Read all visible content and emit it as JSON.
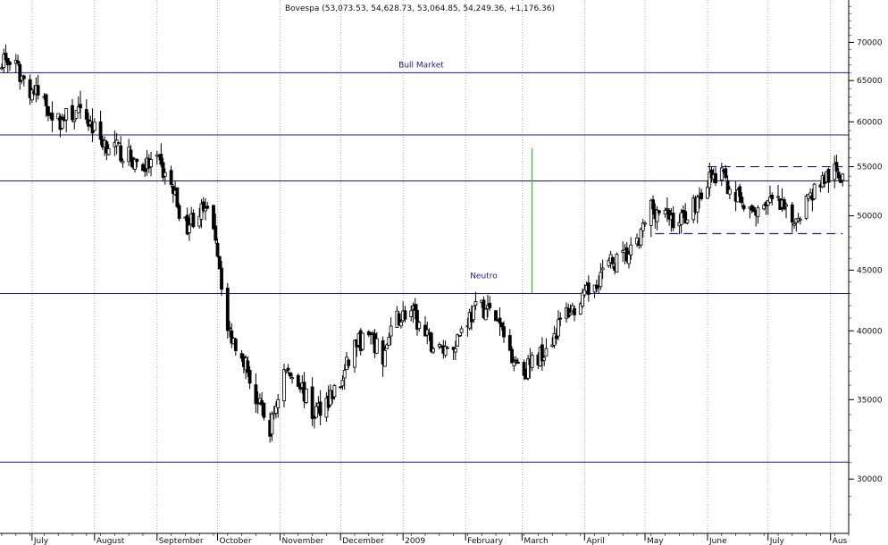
{
  "chart_data": {
    "type": "candlestick",
    "title": "Bovespa (53,073.53, 54,628.73, 53,064.85, 54,249.36, +1,176.36)",
    "y_scale": "log",
    "ylim": [
      27000,
      76000
    ],
    "y_ticks": [
      30000,
      35000,
      40000,
      45000,
      50000,
      55000,
      60000,
      65000,
      70000
    ],
    "y_tick_labels": [
      "30000",
      "35000",
      "40000",
      "45000",
      "50000",
      "55000",
      "60000",
      "65000",
      "70000"
    ],
    "x_start": "2008-06-16",
    "x_end": "2009-08-10",
    "x_ticks": [
      {
        "date": "2008-07-01",
        "label": "July"
      },
      {
        "date": "2008-08-01",
        "label": "August"
      },
      {
        "date": "2008-09-01",
        "label": "September"
      },
      {
        "date": "2008-10-01",
        "label": "October"
      },
      {
        "date": "2008-11-01",
        "label": "November"
      },
      {
        "date": "2008-12-01",
        "label": "December"
      },
      {
        "date": "2009-01-01",
        "label": "2009"
      },
      {
        "date": "2009-02-01",
        "label": "February"
      },
      {
        "date": "2009-03-01",
        "label": "March"
      },
      {
        "date": "2009-04-01",
        "label": "April"
      },
      {
        "date": "2009-05-01",
        "label": "May"
      },
      {
        "date": "2009-06-01",
        "label": "June"
      },
      {
        "date": "2009-07-01",
        "label": "July"
      },
      {
        "date": "2009-08-01",
        "label": "Aus"
      }
    ],
    "grid": {
      "vertical_dotted": true
    },
    "horizontal_lines": [
      {
        "value": 66000,
        "color": "#1a1a8c",
        "style": "solid",
        "label": "Bull Market"
      },
      {
        "value": 58500,
        "color": "#1a1a8c",
        "style": "solid",
        "label": ""
      },
      {
        "value": 53500,
        "color": "#1a1a8c",
        "style": "solid",
        "label": ""
      },
      {
        "value": 43000,
        "color": "#1a1a8c",
        "style": "solid",
        "label": "Neutro"
      },
      {
        "value": 31000,
        "color": "#1a1a8c",
        "style": "solid",
        "label": ""
      }
    ],
    "dashed_lines": [
      {
        "value": 55000,
        "x_from": "2009-06-01",
        "x_to": "2009-08-07",
        "color": "#1a1a8c"
      },
      {
        "value": 48300,
        "x_from": "2009-05-06",
        "x_to": "2009-08-07",
        "color": "#1a1a8c"
      }
    ],
    "vertical_segments": [
      {
        "date": "2009-03-06",
        "from": 43000,
        "to": 57000,
        "color": "#22cc22"
      }
    ],
    "series": [
      {
        "weekly_close": [
          [
            "2008-06-16",
            68000
          ],
          [
            "2008-06-23",
            66500
          ],
          [
            "2008-06-30",
            64000
          ],
          [
            "2008-07-07",
            62500
          ],
          [
            "2008-07-14",
            60000
          ],
          [
            "2008-07-21",
            61000
          ],
          [
            "2008-07-28",
            60500
          ],
          [
            "2008-08-04",
            58000
          ],
          [
            "2008-08-11",
            57000
          ],
          [
            "2008-08-18",
            56000
          ],
          [
            "2008-08-25",
            55000
          ],
          [
            "2008-09-01",
            55500
          ],
          [
            "2008-09-08",
            53000
          ],
          [
            "2008-09-15",
            49000
          ],
          [
            "2008-09-22",
            50500
          ],
          [
            "2008-09-29",
            49500
          ],
          [
            "2008-10-06",
            40000
          ],
          [
            "2008-10-13",
            38500
          ],
          [
            "2008-10-20",
            35000
          ],
          [
            "2008-10-27",
            33000
          ],
          [
            "2008-11-03",
            37000
          ],
          [
            "2008-11-10",
            36500
          ],
          [
            "2008-11-17",
            34000
          ],
          [
            "2008-11-24",
            35000
          ],
          [
            "2008-12-01",
            36000
          ],
          [
            "2008-12-08",
            39000
          ],
          [
            "2008-12-15",
            39500
          ],
          [
            "2008-12-22",
            38000
          ],
          [
            "2008-12-29",
            41000
          ],
          [
            "2009-01-05",
            41500
          ],
          [
            "2009-01-12",
            39500
          ],
          [
            "2009-01-19",
            38500
          ],
          [
            "2009-01-26",
            39000
          ],
          [
            "2009-02-02",
            41000
          ],
          [
            "2009-02-09",
            42000
          ],
          [
            "2009-02-16",
            41000
          ],
          [
            "2009-02-23",
            38500
          ],
          [
            "2009-03-02",
            37000
          ],
          [
            "2009-03-09",
            38000
          ],
          [
            "2009-03-16",
            39500
          ],
          [
            "2009-03-23",
            41500
          ],
          [
            "2009-03-30",
            42000
          ],
          [
            "2009-04-06",
            44000
          ],
          [
            "2009-04-13",
            45500
          ],
          [
            "2009-04-20",
            46000
          ],
          [
            "2009-04-27",
            47000
          ],
          [
            "2009-05-04",
            51000
          ],
          [
            "2009-05-11",
            50000
          ],
          [
            "2009-05-18",
            49500
          ],
          [
            "2009-05-25",
            51000
          ],
          [
            "2009-06-01",
            53500
          ],
          [
            "2009-06-08",
            54000
          ],
          [
            "2009-06-15",
            52000
          ],
          [
            "2009-06-22",
            50000
          ],
          [
            "2009-06-29",
            51500
          ],
          [
            "2009-07-06",
            51000
          ],
          [
            "2009-07-13",
            49500
          ],
          [
            "2009-07-20",
            51500
          ],
          [
            "2009-07-27",
            53500
          ],
          [
            "2009-08-03",
            54249
          ]
        ]
      }
    ]
  }
}
